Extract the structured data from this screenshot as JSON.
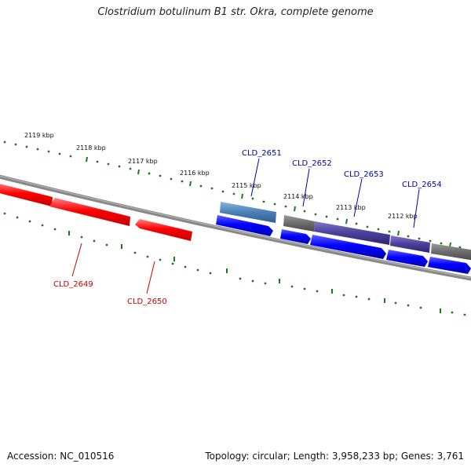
{
  "title": "Clostridium botulinum B1 str. Okra, complete genome",
  "footer": {
    "accession": "Accession: NC_010516",
    "summary": "Topology: circular; Length: 3,958,233 bp; Genes: 3,761"
  },
  "colors": {
    "backbone": "#888888",
    "tick": "#1a7a1a",
    "gene_forward_red": "#ff0000",
    "gene_label_red": "#cc0000",
    "gene_blue": "#0000ff",
    "gene_label_blue": "#0000aa",
    "feature_steelblue": "#4a7fb5",
    "feature_purple": "#4a3f99",
    "feature_gray": "#6b6b6b"
  },
  "ticks": {
    "labels": [
      "2119 kbp",
      "2118 kbp",
      "2117 kbp",
      "2116 kbp",
      "2115 kbp",
      "2114 kbp",
      "2113 kbp",
      "2112 kbp"
    ]
  },
  "genes": [
    {
      "id": "CLD_2649",
      "strand": "-",
      "color": "red"
    },
    {
      "id": "CLD_2650",
      "strand": "-",
      "color": "red"
    },
    {
      "id": "CLD_2651",
      "strand": "+",
      "color": "blue"
    },
    {
      "id": "CLD_2652",
      "strand": "+",
      "color": "blue"
    },
    {
      "id": "CLD_2653",
      "strand": "+",
      "color": "blue"
    },
    {
      "id": "CLD_2654",
      "strand": "+",
      "color": "blue"
    }
  ]
}
